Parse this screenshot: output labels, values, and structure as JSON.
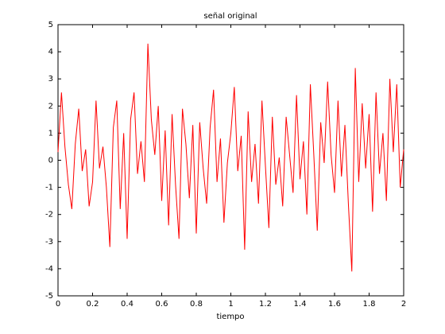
{
  "chart_data": {
    "type": "line",
    "title": "señal original",
    "xlabel": "tiempo",
    "x": [
      0,
      0.02,
      0.04,
      0.06,
      0.08,
      0.1,
      0.12,
      0.14,
      0.16,
      0.18,
      0.2,
      0.22,
      0.24,
      0.26,
      0.28,
      0.3,
      0.32,
      0.34,
      0.36,
      0.38,
      0.4,
      0.42,
      0.44,
      0.46,
      0.48,
      0.5,
      0.52,
      0.54,
      0.56,
      0.58,
      0.6,
      0.62,
      0.64,
      0.66,
      0.68,
      0.7,
      0.72,
      0.74,
      0.76,
      0.78,
      0.8,
      0.82,
      0.84,
      0.86,
      0.88,
      0.9,
      0.92,
      0.94,
      0.96,
      0.98,
      1,
      1.02,
      1.04,
      1.06,
      1.08,
      1.1,
      1.12,
      1.14,
      1.16,
      1.18,
      1.2,
      1.22,
      1.24,
      1.26,
      1.28,
      1.3,
      1.32,
      1.34,
      1.36,
      1.38,
      1.4,
      1.42,
      1.44,
      1.46,
      1.48,
      1.5,
      1.52,
      1.54,
      1.56,
      1.58,
      1.6,
      1.62,
      1.64,
      1.66,
      1.68,
      1.7,
      1.72,
      1.74,
      1.76,
      1.78,
      1.8,
      1.82,
      1.84,
      1.86,
      1.88,
      1.9,
      1.92,
      1.94,
      1.96,
      1.98,
      2
    ],
    "series": [
      {
        "color": "#ff0000",
        "values": [
          0.3,
          2.5,
          0.5,
          -0.9,
          -1.8,
          0.6,
          1.9,
          -0.4,
          0.4,
          -1.7,
          -0.8,
          2.2,
          -0.3,
          0.5,
          -1.0,
          -3.2,
          1.2,
          2.2,
          -1.8,
          1.0,
          -2.9,
          1.5,
          2.5,
          -0.5,
          0.7,
          -0.8,
          4.3,
          1.5,
          0.2,
          2.0,
          -1.5,
          1.1,
          -2.4,
          1.7,
          -0.9,
          -2.9,
          1.9,
          0.6,
          -1.4,
          1.3,
          -2.7,
          1.4,
          -0.3,
          -1.6,
          1.2,
          2.6,
          -0.8,
          0.8,
          -2.3,
          -0.1,
          1.0,
          2.7,
          -0.4,
          0.9,
          -3.3,
          1.8,
          -0.8,
          0.6,
          -1.6,
          2.2,
          -0.2,
          -2.5,
          1.6,
          -0.9,
          0.1,
          -1.7,
          1.6,
          0.2,
          -1.2,
          2.4,
          -0.7,
          0.7,
          -2.0,
          2.8,
          0.2,
          -2.6,
          1.4,
          -0.1,
          2.9,
          0.2,
          -1.2,
          2.2,
          -0.6,
          1.3,
          -1.6,
          -4.1,
          3.4,
          -0.8,
          2.1,
          -0.3,
          1.7,
          -1.9,
          2.5,
          -0.5,
          1.0,
          -1.5,
          3.0,
          0.3,
          2.8,
          -1.0,
          0.4
        ]
      }
    ],
    "xlim": [
      0,
      2
    ],
    "ylim": [
      -5,
      5
    ],
    "xticks": [
      0,
      0.2,
      0.4,
      0.6,
      0.8,
      1,
      1.2,
      1.4,
      1.6,
      1.8,
      2
    ],
    "yticks": [
      -5,
      -4,
      -3,
      -2,
      -1,
      0,
      1,
      2,
      3,
      4,
      5
    ],
    "grid": false
  }
}
